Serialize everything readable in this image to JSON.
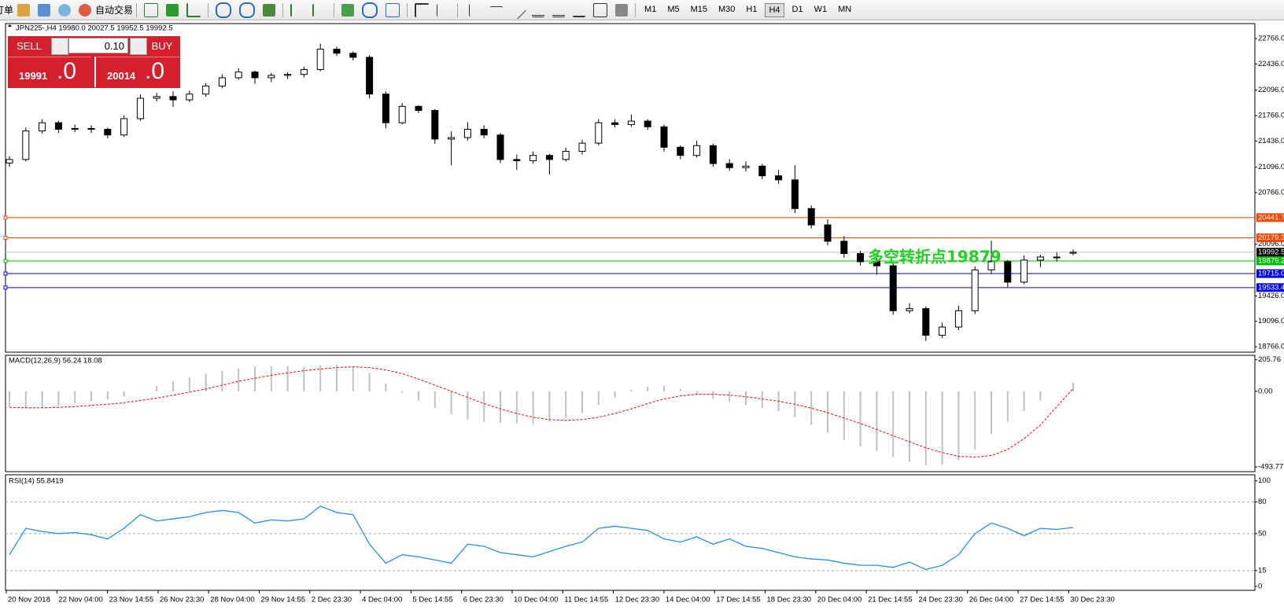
{
  "toolbar": {
    "order": "订单",
    "auto_trade": "自动交易",
    "timeframes": [
      "M1",
      "M5",
      "M15",
      "M30",
      "H1",
      "H4",
      "D1",
      "W1",
      "MN"
    ],
    "active_timeframe": "H4"
  },
  "trade_panel": {
    "sell": "SELL",
    "lot": "0.10",
    "buy": "BUY",
    "bid_main": "19991",
    "bid_frac": ".0",
    "ask_main": "20014",
    "ask_frac": ".0"
  },
  "chart_data": [
    {
      "type": "candlestick",
      "title": "JPN225-,H4 19980.0 20027.5 19952.5 19992.5",
      "ohlc": [
        [
          21150,
          21240,
          21100,
          21196
        ],
        [
          21196,
          21610,
          21170,
          21567
        ],
        [
          21567,
          21720,
          21530,
          21673
        ],
        [
          21673,
          21700,
          21540,
          21588
        ],
        [
          21588,
          21650,
          21550,
          21599
        ],
        [
          21599,
          21640,
          21540,
          21588
        ],
        [
          21588,
          21610,
          21470,
          21514
        ],
        [
          21514,
          21770,
          21490,
          21726
        ],
        [
          21726,
          22040,
          21700,
          21991
        ],
        [
          21991,
          22060,
          21950,
          22013
        ],
        [
          22013,
          22080,
          21880,
          21970
        ],
        [
          21970,
          22090,
          21940,
          22045
        ],
        [
          22045,
          22190,
          22010,
          22150
        ],
        [
          22150,
          22300,
          22120,
          22257
        ],
        [
          22257,
          22380,
          22230,
          22331
        ],
        [
          22331,
          22350,
          22180,
          22257
        ],
        [
          22257,
          22320,
          22200,
          22288
        ],
        [
          22288,
          22330,
          22240,
          22300
        ],
        [
          22300,
          22400,
          22260,
          22363
        ],
        [
          22363,
          22700,
          22340,
          22628
        ],
        [
          22628,
          22660,
          22540,
          22575
        ],
        [
          22575,
          22600,
          22480,
          22522
        ],
        [
          22522,
          22550,
          21990,
          22045
        ],
        [
          22045,
          22080,
          21600,
          21673
        ],
        [
          21673,
          21930,
          21650,
          21885
        ],
        [
          21885,
          21900,
          21800,
          21832
        ],
        [
          21832,
          21850,
          21400,
          21461
        ],
        [
          21461,
          21560,
          21120,
          21480
        ],
        [
          21480,
          21680,
          21440,
          21588
        ],
        [
          21588,
          21640,
          21470,
          21514
        ],
        [
          21514,
          21540,
          21150,
          21196
        ],
        [
          21196,
          21260,
          21060,
          21180
        ],
        [
          21180,
          21300,
          21140,
          21249
        ],
        [
          21249,
          21270,
          21000,
          21196
        ],
        [
          21196,
          21350,
          21170,
          21302
        ],
        [
          21302,
          21450,
          21260,
          21408
        ],
        [
          21408,
          21720,
          21380,
          21673
        ],
        [
          21673,
          21720,
          21610,
          21650
        ],
        [
          21650,
          21780,
          21620,
          21694
        ],
        [
          21694,
          21720,
          21580,
          21620
        ],
        [
          21620,
          21650,
          21300,
          21355
        ],
        [
          21355,
          21380,
          21200,
          21249
        ],
        [
          21249,
          21440,
          21220,
          21376
        ],
        [
          21376,
          21400,
          21100,
          21143
        ],
        [
          21143,
          21200,
          21050,
          21090
        ],
        [
          21090,
          21170,
          21040,
          21110
        ],
        [
          21110,
          21140,
          20940,
          20984
        ],
        [
          20984,
          21060,
          20880,
          20931
        ],
        [
          20931,
          21120,
          20500,
          20559
        ],
        [
          20559,
          20600,
          20300,
          20347
        ],
        [
          20347,
          20420,
          20080,
          20135
        ],
        [
          20135,
          20200,
          19920,
          19975
        ],
        [
          19975,
          20010,
          19820,
          19869
        ],
        [
          19869,
          19920,
          19700,
          19816
        ],
        [
          19816,
          19860,
          19180,
          19233
        ],
        [
          19233,
          19330,
          19200,
          19260
        ],
        [
          19260,
          19290,
          18840,
          18915
        ],
        [
          18915,
          19080,
          18880,
          19021
        ],
        [
          19021,
          19300,
          18980,
          19233
        ],
        [
          19233,
          19810,
          19190,
          19763
        ],
        [
          19763,
          20140,
          19720,
          19869
        ],
        [
          19869,
          19890,
          19540,
          19604
        ],
        [
          19604,
          19950,
          19580,
          19890
        ],
        [
          19890,
          19960,
          19800,
          19930
        ],
        [
          19930,
          19990,
          19870,
          19922
        ],
        [
          19980,
          20027.5,
          19952.5,
          19992.5
        ]
      ],
      "up_color": "#ffffff",
      "down_color": "#000000",
      "ylim": [
        18695,
        22960
      ],
      "yticks": [
        {
          "value": 22766,
          "label": "22766.0"
        },
        {
          "value": 22436,
          "label": "22436.0"
        },
        {
          "value": 22096,
          "label": "22096.0"
        },
        {
          "value": 21766,
          "label": "21766.0"
        },
        {
          "value": 21436,
          "label": "21436.0"
        },
        {
          "value": 21096,
          "label": "21096.0"
        },
        {
          "value": 20766,
          "label": "20766.0"
        },
        {
          "value": 20096,
          "label": "20096.0"
        },
        {
          "value": 19426,
          "label": "19426.0"
        },
        {
          "value": 19096,
          "label": "19096.0"
        },
        {
          "value": 18766,
          "label": "18766.0"
        }
      ],
      "levels": [
        {
          "value": 20441.7,
          "color": "#ff4500"
        },
        {
          "value": 20179.3,
          "color": "#ff4500"
        },
        {
          "value": 19879.2,
          "color": "#00c000"
        },
        {
          "value": 19715,
          "label": "19715.0",
          "color": "#0000ff"
        },
        {
          "value": 19533.4,
          "color": "#0000ff"
        }
      ],
      "last_price": 19992.5,
      "annotation": "多空转折点19879",
      "x_labels": [
        "20 Nov 2018",
        "22 Nov 04:00",
        "23 Nov 14:55",
        "26 Nov 23:30",
        "28 Nov 04:00",
        "29 Nov 14:55",
        "2 Dec 23:30",
        "4 Dec 04:00",
        "5 Dec 14:55",
        "6 Dec 23:30",
        "10 Dec 04:00",
        "11 Dec 14:55",
        "12 Dec 23:30",
        "14 Dec 04:00",
        "17 Dec 14:55",
        "18 Dec 23:30",
        "20 Dec 04:00",
        "21 Dec 14:55",
        "24 Dec 23:30",
        "26 Dec 04:00",
        "27 Dec 14:55",
        "30 Dec 23:30"
      ]
    },
    {
      "type": "macd",
      "title": "MACD(12,26,9) 56.24 18.08",
      "histogram": [
        -100,
        -110,
        -105,
        -95,
        -80,
        -65,
        -55,
        -35,
        0,
        35,
        65,
        90,
        115,
        135,
        150,
        160,
        165,
        165,
        160,
        170,
        175,
        160,
        120,
        50,
        -10,
        -60,
        -110,
        -150,
        -185,
        -200,
        -205,
        -210,
        -215,
        -200,
        -175,
        -140,
        -90,
        -40,
        10,
        30,
        35,
        15,
        -20,
        -50,
        -70,
        -90,
        -110,
        -130,
        -170,
        -220,
        -270,
        -320,
        -360,
        -390,
        -430,
        -460,
        -485,
        -480,
        -450,
        -380,
        -280,
        -200,
        -130,
        -60,
        0,
        56.24
      ],
      "signal": [
        -105,
        -108,
        -108,
        -105,
        -100,
        -92,
        -85,
        -75,
        -60,
        -45,
        -25,
        -5,
        15,
        40,
        65,
        85,
        105,
        120,
        135,
        145,
        155,
        160,
        155,
        140,
        115,
        80,
        40,
        0,
        -40,
        -80,
        -115,
        -145,
        -170,
        -185,
        -190,
        -185,
        -170,
        -145,
        -115,
        -80,
        -50,
        -30,
        -20,
        -20,
        -25,
        -35,
        -50,
        -65,
        -85,
        -110,
        -140,
        -175,
        -210,
        -250,
        -290,
        -330,
        -370,
        -400,
        -425,
        -430,
        -420,
        -380,
        -310,
        -220,
        -100,
        18.08
      ],
      "histogram_color": "#c0c0c0",
      "signal_color": "#ff0000",
      "ylim": [
        -520,
        230
      ],
      "yticks": [
        {
          "value": 205.76,
          "label": "205.76"
        },
        {
          "value": 0,
          "label": "0.00"
        },
        {
          "value": -493.77,
          "label": "-493.77"
        }
      ]
    },
    {
      "type": "line",
      "title": "RSI(14) 55.8419",
      "values": [
        30,
        55,
        52,
        50,
        51,
        49,
        45,
        55,
        68,
        62,
        64,
        66,
        70,
        72,
        70,
        60,
        63,
        62,
        64,
        76,
        70,
        68,
        40,
        22,
        30,
        28,
        25,
        22,
        40,
        38,
        32,
        30,
        28,
        33,
        38,
        42,
        55,
        57,
        55,
        53,
        45,
        42,
        47,
        40,
        45,
        38,
        36,
        32,
        28,
        26,
        25,
        22,
        20,
        20,
        18,
        23,
        16,
        20,
        30,
        50,
        60,
        55,
        48,
        55,
        54,
        55.8419
      ],
      "color": "#1e90ff",
      "ylim": [
        -3,
        105
      ],
      "yticks": [
        100,
        80,
        50,
        15,
        0
      ],
      "levels": [
        80,
        50,
        15
      ]
    }
  ]
}
